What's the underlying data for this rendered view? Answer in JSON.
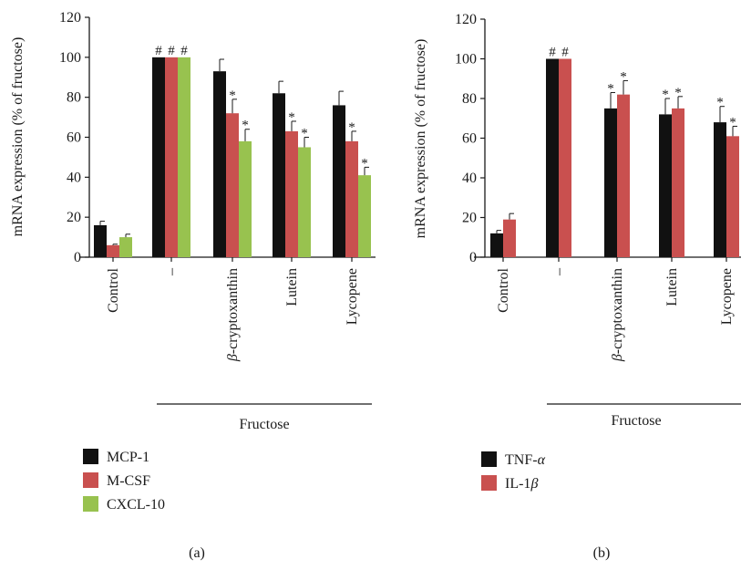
{
  "charts": [
    {
      "panel_label": "(a)",
      "group_label": "Fructose",
      "ylabel": "mRNA expression (% of fructose)",
      "ylim": [
        0,
        120
      ],
      "yticks": [
        "0",
        "20",
        "40",
        "60",
        "80",
        "100",
        "120"
      ],
      "categories": [
        "Control",
        "–",
        "β-cryptoxanthin",
        "Lutein",
        "Lycopene"
      ],
      "colors": {
        "MCP-1": "#111111",
        "M-CSF": "#c9504f",
        "CXCL-10": "#98c24f"
      }
    },
    {
      "panel_label": "(b)",
      "group_label": "Fructose",
      "ylabel": "mRNA expression (% of fructose)",
      "ylim": [
        0,
        120
      ],
      "yticks": [
        "0",
        "20",
        "40",
        "60",
        "80",
        "100",
        "120"
      ],
      "categories": [
        "Control",
        "–",
        "β-cryptoxanthin",
        "Lutein",
        "Lycopene"
      ],
      "colors": {
        "TNF-α": "#111111",
        "IL-1β": "#c9504f"
      }
    }
  ],
  "chart_data": [
    {
      "type": "bar",
      "title": "",
      "xlabel": "",
      "ylabel": "mRNA expression (% of fructose)",
      "ylim": [
        0,
        120
      ],
      "grid": false,
      "legend_placement": "bottom-left",
      "categories": [
        "Control",
        "–",
        "β-cryptoxanthin",
        "Lutein",
        "Lycopene"
      ],
      "series": [
        {
          "name": "MCP-1",
          "color": "#111111",
          "values": [
            16,
            100,
            93,
            82,
            76
          ],
          "errors": [
            2,
            0,
            6,
            6,
            7
          ],
          "marks": [
            "",
            "#",
            "",
            "",
            ""
          ]
        },
        {
          "name": "M-CSF",
          "color": "#c9504f",
          "values": [
            6,
            100,
            72,
            63,
            58
          ],
          "errors": [
            0.5,
            0,
            7,
            5,
            5
          ],
          "marks": [
            "",
            "#",
            "*",
            "*",
            "*"
          ]
        },
        {
          "name": "CXCL-10",
          "color": "#98c24f",
          "values": [
            10,
            100,
            58,
            55,
            41
          ],
          "errors": [
            1.5,
            0,
            6,
            5,
            4
          ],
          "marks": [
            "",
            "#",
            "*",
            "*",
            "*"
          ]
        }
      ]
    },
    {
      "type": "bar",
      "title": "",
      "xlabel": "",
      "ylabel": "mRNA expression (% of fructose)",
      "ylim": [
        0,
        120
      ],
      "grid": false,
      "legend_placement": "bottom-left",
      "categories": [
        "Control",
        "–",
        "β-cryptoxanthin",
        "Lutein",
        "Lycopene"
      ],
      "series": [
        {
          "name": "TNF-α",
          "color": "#111111",
          "values": [
            12,
            100,
            75,
            72,
            68
          ],
          "errors": [
            1.5,
            0,
            8,
            8,
            8
          ],
          "marks": [
            "",
            "#",
            "*",
            "*",
            "*"
          ]
        },
        {
          "name": "IL-1β",
          "color": "#c9504f",
          "values": [
            19,
            100,
            82,
            75,
            61
          ],
          "errors": [
            3,
            0,
            7,
            6,
            5
          ],
          "marks": [
            "",
            "#",
            "*",
            "*",
            "*"
          ]
        }
      ]
    }
  ]
}
